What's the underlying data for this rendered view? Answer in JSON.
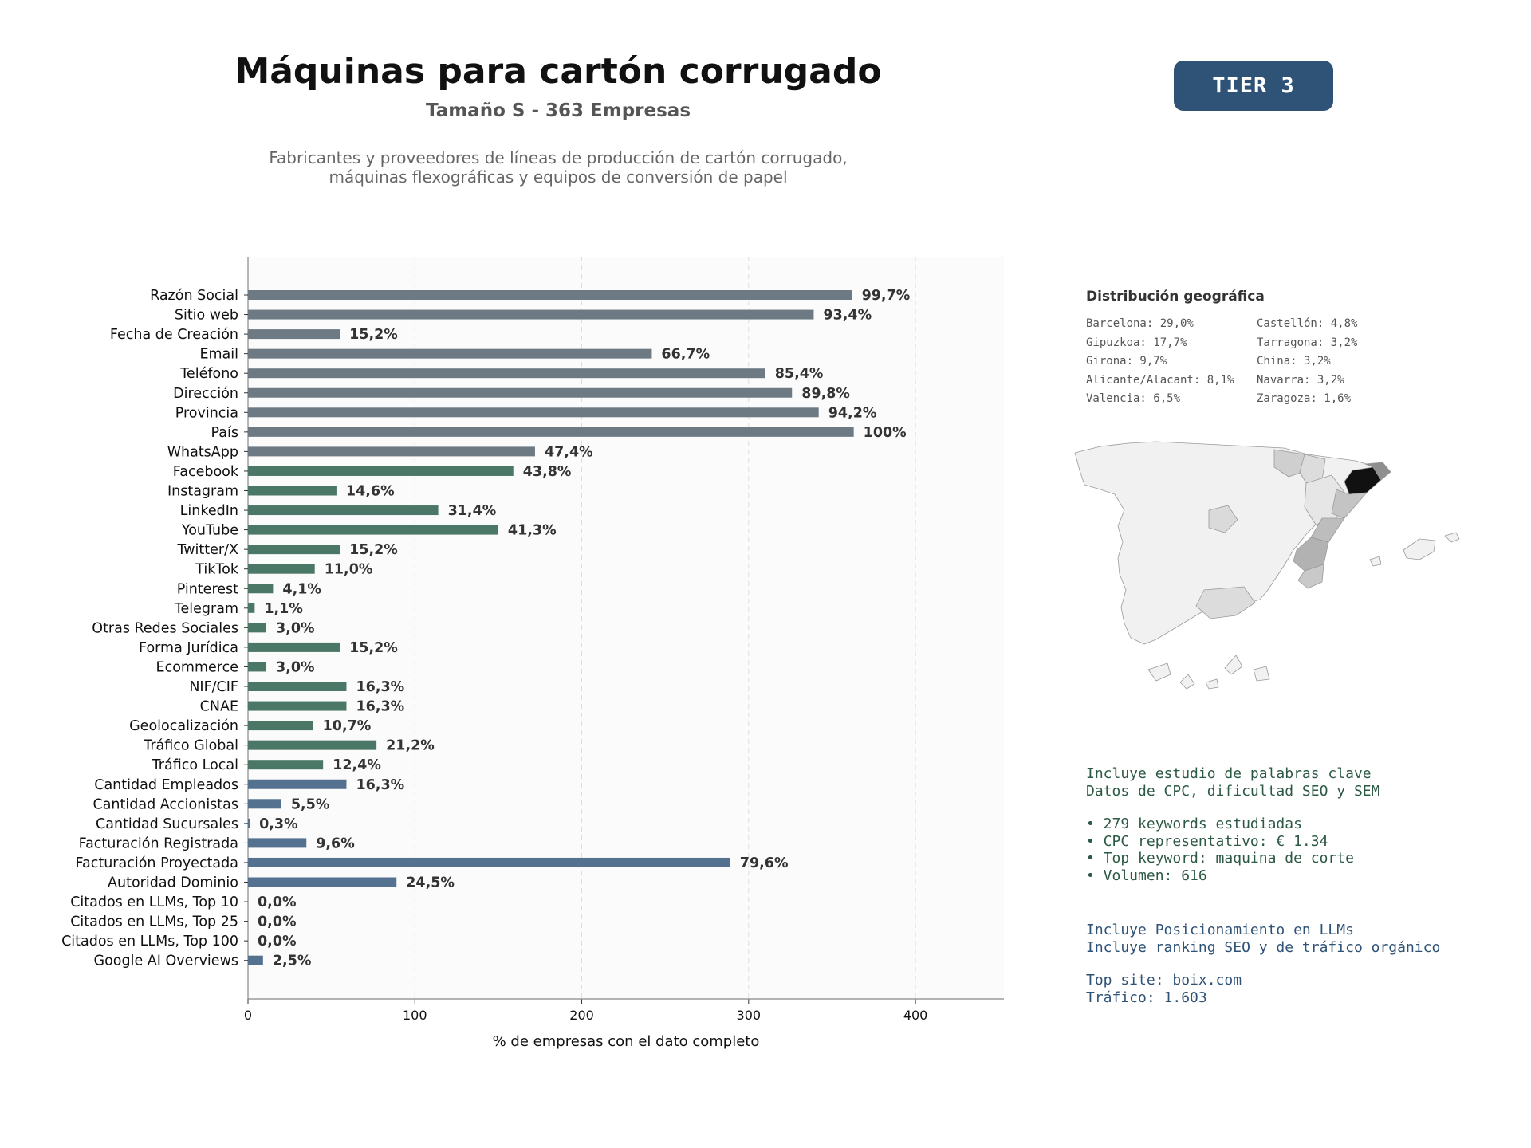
{
  "header": {
    "title": "Máquinas para cartón corrugado",
    "subtitle": "Tamaño S - 363 Empresas",
    "description_line1": "Fabricantes y proveedores de líneas de producción de cartón corrugado,",
    "description_line2": "máquinas flexográficas y equipos de conversión de papel",
    "tier": "TIER 3"
  },
  "colors": {
    "gray": "#6e7a83",
    "green": "#4a7766",
    "blue": "#54718f",
    "tier_bg": "#2f5277"
  },
  "chart_data": {
    "type": "bar",
    "orientation": "horizontal",
    "xlabel": "% de empresas con el dato completo",
    "xlim": [
      0,
      453
    ],
    "xticks": [
      0,
      100,
      200,
      300,
      400
    ],
    "grid": true,
    "categories": [
      "Razón Social",
      "Sitio web",
      "Fecha de Creación",
      "Email",
      "Teléfono",
      "Dirección",
      "Provincia",
      "País",
      "WhatsApp",
      "Facebook",
      "Instagram",
      "LinkedIn",
      "YouTube",
      "Twitter/X",
      "TikTok",
      "Pinterest",
      "Telegram",
      "Otras Redes Sociales",
      "Forma Jurídica",
      "Ecommerce",
      "NIF/CIF",
      "CNAE",
      "Geolocalización",
      "Tráfico Global",
      "Tráfico Local",
      "Cantidad Empleados",
      "Cantidad Accionistas",
      "Cantidad Sucursales",
      "Facturación Registrada",
      "Facturación Proyectada",
      "Autoridad Dominio",
      "Citados en LLMs, Top 10",
      "Citados en LLMs, Top 25",
      "Citados en LLMs, Top 100",
      "Google AI Overviews"
    ],
    "values": [
      362,
      339,
      55,
      242,
      310,
      326,
      342,
      363,
      172,
      159,
      53,
      114,
      150,
      55,
      40,
      15,
      4,
      11,
      55,
      11,
      59,
      59,
      39,
      77,
      45,
      59,
      20,
      1,
      35,
      289,
      89,
      0,
      0,
      0,
      9
    ],
    "labels": [
      "99,7%",
      "93,4%",
      "15,2%",
      "66,7%",
      "85,4%",
      "89,8%",
      "94,2%",
      "100%",
      "47,4%",
      "43,8%",
      "14,6%",
      "31,4%",
      "41,3%",
      "15,2%",
      "11,0%",
      "4,1%",
      "1,1%",
      "3,0%",
      "15,2%",
      "3,0%",
      "16,3%",
      "16,3%",
      "10,7%",
      "21,2%",
      "12,4%",
      "16,3%",
      "5,5%",
      "0,3%",
      "9,6%",
      "79,6%",
      "24,5%",
      "0,0%",
      "0,0%",
      "0,0%",
      "2,5%"
    ],
    "groups": [
      "gray",
      "gray",
      "gray",
      "gray",
      "gray",
      "gray",
      "gray",
      "gray",
      "gray",
      "green",
      "green",
      "green",
      "green",
      "green",
      "green",
      "green",
      "green",
      "green",
      "green",
      "green",
      "green",
      "green",
      "green",
      "green",
      "green",
      "blue",
      "blue",
      "blue",
      "blue",
      "blue",
      "blue",
      "blue",
      "blue",
      "blue",
      "blue"
    ]
  },
  "geo": {
    "title": "Distribución geográfica",
    "items": [
      "Barcelona: 29,0%",
      "Castellón: 4,8%",
      "Gipuzkoa: 17,7%",
      "Tarragona: 3,2%",
      "Girona: 9,7%",
      "China: 3,2%",
      "Alicante/Alacant: 8,1%",
      "Navarra: 3,2%",
      "Valencia: 6,5%",
      "Zaragoza: 1,6%"
    ]
  },
  "keywords": {
    "line1": "Incluye estudio de palabras clave",
    "line2": "Datos de CPC, dificultad SEO y SEM",
    "bullet1": "• 279 keywords estudiadas",
    "bullet2": "• CPC representativo: € 1.34",
    "bullet3": "• Top keyword: maquina de corte",
    "bullet4": "• Volumen: 616"
  },
  "llm": {
    "line1": "Incluye Posicionamiento en LLMs",
    "line2": "Incluye ranking SEO y de tráfico orgánico",
    "top_site": "Top site: boix.com",
    "traffic": "Tráfico: 1.603"
  }
}
